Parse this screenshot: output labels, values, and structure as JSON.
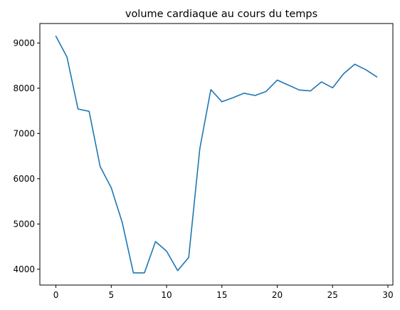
{
  "chart_data": {
    "type": "line",
    "title": "volume cardiaque au cours du temps",
    "xlabel": "",
    "ylabel": "",
    "xlim": [
      -1.45,
      30.45
    ],
    "ylim": [
      3650,
      9430
    ],
    "xticks": [
      0,
      5,
      10,
      15,
      20,
      25,
      30
    ],
    "yticks": [
      4000,
      5000,
      6000,
      7000,
      8000,
      9000
    ],
    "grid": false,
    "legend": "none",
    "series": [
      {
        "color": "#1f77b4",
        "x": [
          0,
          1,
          2,
          3,
          4,
          5,
          6,
          7,
          8,
          9,
          10,
          11,
          12,
          13,
          14,
          15,
          16,
          17,
          18,
          19,
          20,
          21,
          22,
          23,
          24,
          25,
          26,
          27,
          28,
          29
        ],
        "values": [
          9150,
          8690,
          7540,
          7490,
          6270,
          5800,
          5030,
          3920,
          3920,
          4610,
          4400,
          3970,
          4260,
          6660,
          7970,
          7700,
          7790,
          7890,
          7840,
          7930,
          8180,
          8070,
          7960,
          7940,
          8140,
          8010,
          8320,
          8530,
          8410,
          8250
        ]
      }
    ]
  }
}
